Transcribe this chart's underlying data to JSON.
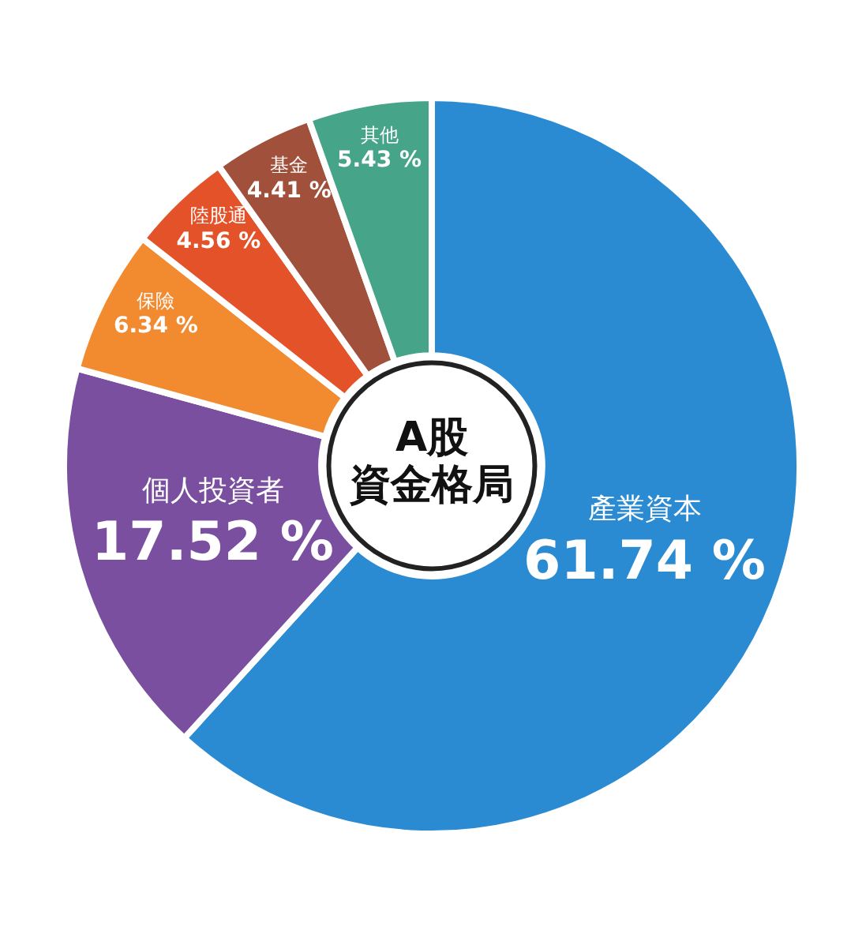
{
  "chart_data": {
    "type": "donut",
    "title": "A股",
    "subtitle": "資金格局",
    "categories": [
      "產業資本",
      "個人投資者",
      "保險",
      "陸股通",
      "基金",
      "其他"
    ],
    "values": [
      61.74,
      17.52,
      6.34,
      4.56,
      4.41,
      5.43
    ],
    "value_labels": [
      "61.74 %",
      "17.52 %",
      "6.34 %",
      "4.56 %",
      "4.41 %",
      "5.43 %"
    ],
    "colors": [
      "#2b8bd2",
      "#7a4f9f",
      "#f28a30",
      "#e4522a",
      "#a1513b",
      "#46a488"
    ]
  }
}
